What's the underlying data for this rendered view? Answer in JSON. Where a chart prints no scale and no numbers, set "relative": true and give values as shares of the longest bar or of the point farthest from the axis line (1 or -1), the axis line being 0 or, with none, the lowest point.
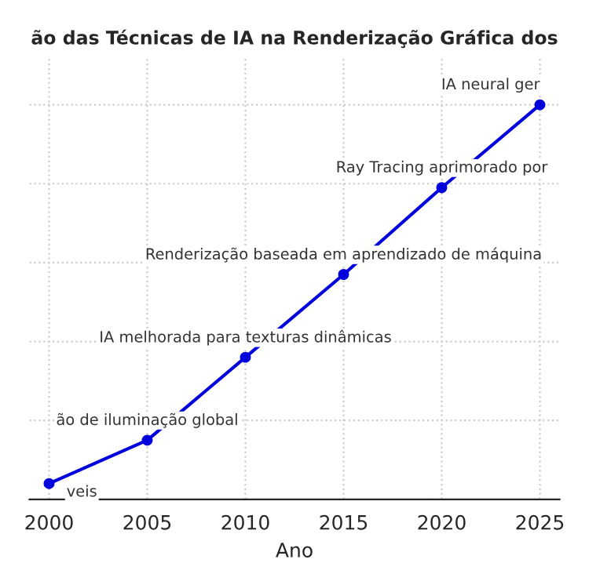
{
  "chart_data": {
    "type": "line",
    "title": "ão das Técnicas de IA na Renderização Gráfica dos",
    "xlabel": "Ano",
    "x": [
      2000,
      2005,
      2010,
      2015,
      2020,
      2025
    ],
    "series": [
      {
        "color": "#0000dd",
        "values": [
          0.04,
          0.15,
          0.36,
          0.57,
          0.79,
          1
        ]
      }
    ],
    "relative": true,
    "xlim": [
      1999,
      2026
    ],
    "xticks": [
      2000,
      2005,
      2010,
      2015,
      2020,
      2025
    ],
    "grid": true,
    "marker": "circle",
    "line_style": "solid",
    "tick_labels": "x",
    "annotations": [
      {
        "text": "veis",
        "x": 2000,
        "y": 0.04
      },
      {
        "text": "ão de iluminação global",
        "x": 2005,
        "y": 0.15
      },
      {
        "text": "IA melhorada para texturas dinâmicas",
        "x": 2010,
        "y": 0.36
      },
      {
        "text": "Renderização baseada em aprendizado de máquina",
        "x": 2015,
        "y": 0.57
      },
      {
        "text": "Ray Tracing aprimorado por",
        "x": 2020,
        "y": 0.79
      },
      {
        "text": "IA neural ger",
        "x": 2025,
        "y": 1
      }
    ]
  }
}
